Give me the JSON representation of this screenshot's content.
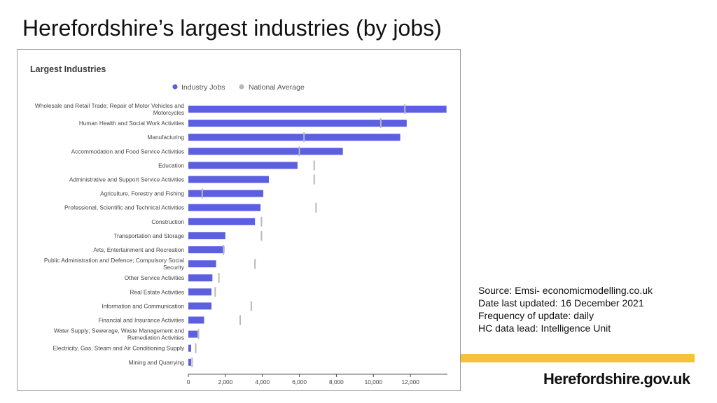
{
  "slide": {
    "title": "Herefordshire’s largest industries (by jobs)",
    "source_lines": [
      "Source: Emsi- economicmodelling.co.uk",
      "Date last updated: 16 December 2021",
      "Frequency of update: daily",
      "HC data lead: Intelligence Unit"
    ],
    "logo_text": "Herefordshire.gov.uk",
    "accent_color": "#f5c33b"
  },
  "chart_data": {
    "type": "bar",
    "orientation": "horizontal",
    "title": "Largest Industries",
    "xlim": [
      0,
      14000
    ],
    "xticks": [
      "0",
      "2,000",
      "4,000",
      "6,000",
      "8,000",
      "10,000",
      "12,000"
    ],
    "xtick_values": [
      0,
      2000,
      4000,
      6000,
      8000,
      10000,
      12000
    ],
    "legend_position": "top",
    "categories": [
      [
        "Wholesale and Retail Trade; Repair of Motor Vehicles and",
        "Motorcycles"
      ],
      [
        "Human Health and Social Work Activities"
      ],
      [
        "Manufacturing"
      ],
      [
        "Accommodation and Food Service Activities"
      ],
      [
        "Education"
      ],
      [
        "Administrative and Support Service Activities"
      ],
      [
        "Agriculture, Forestry and Fishing"
      ],
      [
        "Professional, Scientific and Technical Activities"
      ],
      [
        "Construction"
      ],
      [
        "Transportation and Storage"
      ],
      [
        "Arts, Entertainment and Recreation"
      ],
      [
        "Public Administration and Defence; Compulsory Social",
        "Security"
      ],
      [
        "Other Service Activities"
      ],
      [
        "Real Estate Activities"
      ],
      [
        "Information and Communication"
      ],
      [
        "Financial and Insurance Activities"
      ],
      [
        "Water Supply; Sewerage, Waste Management and",
        "Remediation Activities"
      ],
      [
        "Electricity, Gas, Steam and Air Conditioning Supply"
      ],
      [
        "Mining and Quarrying"
      ]
    ],
    "series": [
      {
        "name": "Industry Jobs",
        "color": "#5c5fe0",
        "values": [
          13950,
          11800,
          11450,
          8350,
          5900,
          4350,
          4050,
          3900,
          3600,
          2000,
          1950,
          1500,
          1300,
          1250,
          1250,
          850,
          500,
          150,
          150
        ]
      },
      {
        "name": "National Average",
        "color": "#b9b9b9",
        "values": [
          11700,
          10400,
          6250,
          6000,
          6800,
          6800,
          750,
          6900,
          3950,
          3950,
          1900,
          3600,
          1650,
          1450,
          3400,
          2800,
          550,
          400,
          200
        ]
      }
    ]
  }
}
